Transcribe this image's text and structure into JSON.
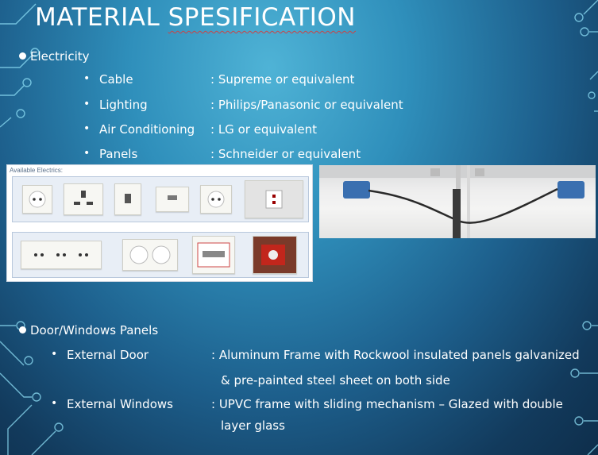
{
  "title": {
    "part1": "MATERIAL",
    "part2": "SPESIFICATION"
  },
  "sections": {
    "electricity": {
      "heading": "Electricity",
      "items": [
        {
          "label": "Cable",
          "value": ": Supreme or equivalent"
        },
        {
          "label": "Lighting",
          "value": ": Philips/Panasonic or equivalent"
        },
        {
          "label": "Air Conditioning",
          "value": ": LG or equivalent"
        },
        {
          "label": "Panels",
          "value": ": Schneider or equivalent"
        }
      ]
    },
    "door_windows": {
      "heading": "Door/Windows Panels",
      "items": [
        {
          "label": "External Door",
          "value": ": Aluminum Frame with Rockwool insulated panels galvanized",
          "value2": "& pre-painted steel sheet on both side"
        },
        {
          "label": "External Windows",
          "value": ": UPVC frame with sliding mechanism – Glazed with double",
          "value2": "layer glass"
        }
      ]
    }
  },
  "electrics_image": {
    "caption": "Available Electrics:"
  },
  "colors": {
    "accent_circuit": "#7fd3ef",
    "background": "#2f8fbb"
  }
}
